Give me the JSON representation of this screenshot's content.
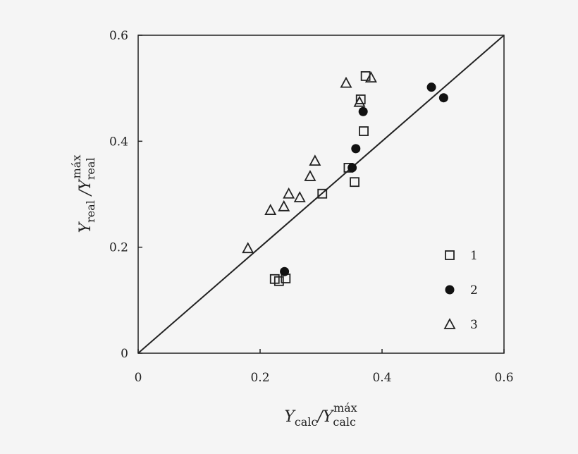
{
  "chart_data": {
    "type": "scatter",
    "title": "",
    "xlabel": {
      "main": "Y",
      "sub": "calc",
      "sep": "/Y",
      "sub2": "calc",
      "sup2": "máx"
    },
    "ylabel": {
      "main": "Y",
      "sub": "real",
      "sep": " /Y",
      "sub2": "real",
      "sup2": "máx"
    },
    "xlim": [
      0,
      0.6
    ],
    "ylim": [
      0,
      0.6
    ],
    "x_ticks": [
      0,
      0.2,
      0.4,
      0.6
    ],
    "x_tick_labels": [
      "0",
      "0.2",
      "0.4",
      "0.6"
    ],
    "y_ticks": [
      0,
      0.2,
      0.4,
      0.6
    ],
    "y_tick_labels": [
      "0",
      "0.2",
      "0.4",
      "0.6"
    ],
    "grid": false,
    "legend_position": "bottom-right",
    "reference_line": {
      "x": [
        0,
        0.6
      ],
      "y": [
        0,
        0.6
      ]
    },
    "series": [
      {
        "name": "1",
        "marker": "open-square",
        "points": [
          [
            0.373,
            0.523
          ],
          [
            0.365,
            0.479
          ],
          [
            0.37,
            0.419
          ],
          [
            0.345,
            0.35
          ],
          [
            0.355,
            0.323
          ],
          [
            0.302,
            0.301
          ],
          [
            0.224,
            0.14
          ],
          [
            0.231,
            0.136
          ],
          [
            0.242,
            0.141
          ]
        ]
      },
      {
        "name": "2",
        "marker": "filled-circle",
        "points": [
          [
            0.481,
            0.502
          ],
          [
            0.501,
            0.482
          ],
          [
            0.369,
            0.456
          ],
          [
            0.357,
            0.386
          ],
          [
            0.351,
            0.35
          ],
          [
            0.24,
            0.154
          ]
        ]
      },
      {
        "name": "3",
        "marker": "open-triangle",
        "points": [
          [
            0.341,
            0.51
          ],
          [
            0.382,
            0.52
          ],
          [
            0.363,
            0.474
          ],
          [
            0.29,
            0.363
          ],
          [
            0.282,
            0.334
          ],
          [
            0.247,
            0.301
          ],
          [
            0.265,
            0.294
          ],
          [
            0.239,
            0.277
          ],
          [
            0.217,
            0.27
          ],
          [
            0.18,
            0.198
          ]
        ]
      }
    ]
  }
}
